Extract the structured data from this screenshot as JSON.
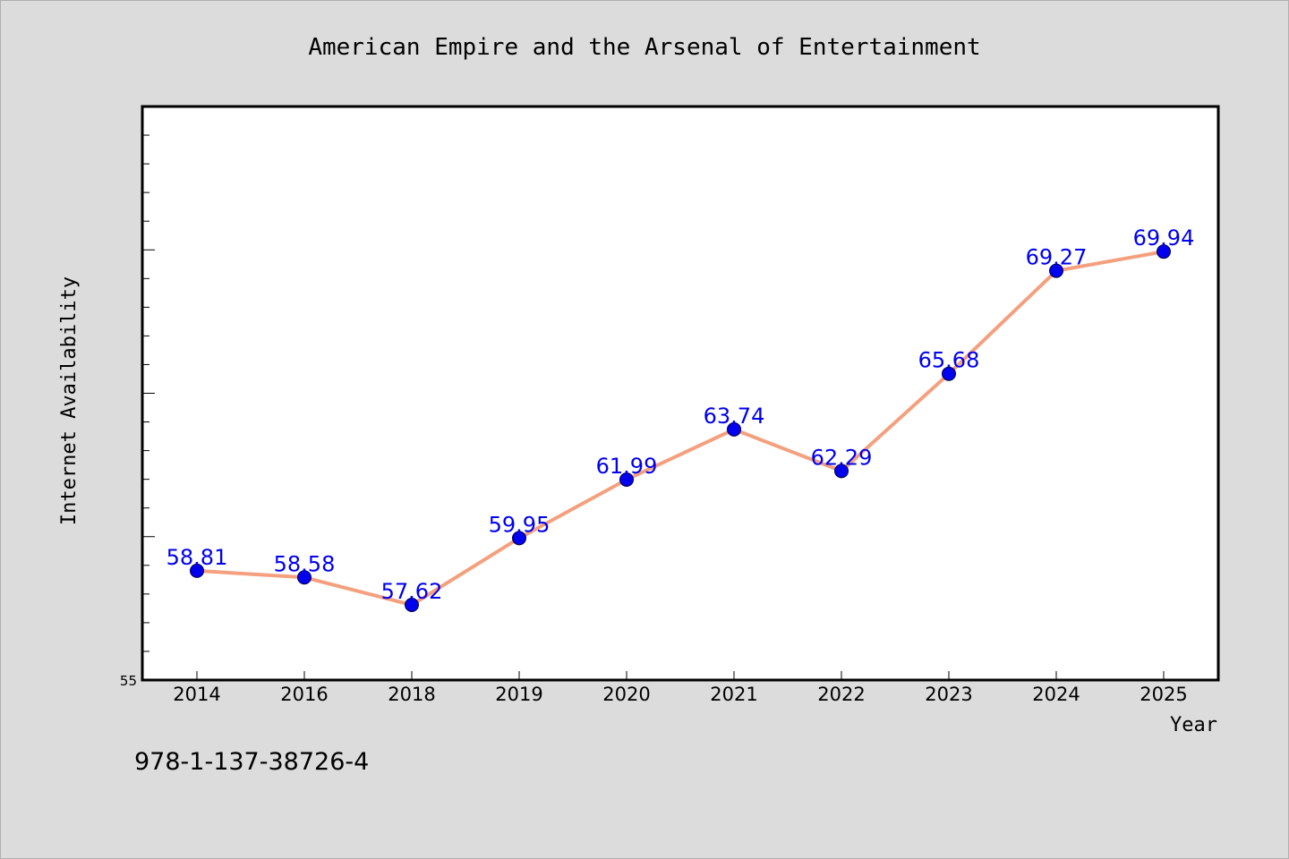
{
  "chart_data": {
    "type": "line",
    "title": "American Empire and the Arsenal of Entertainment",
    "xlabel": "Year",
    "ylabel": "Internet Availability",
    "categories": [
      "2014",
      "2016",
      "2018",
      "2019",
      "2020",
      "2021",
      "2022",
      "2023",
      "2024",
      "2025"
    ],
    "series": [
      {
        "values": [
          58.81,
          58.58,
          57.62,
          59.95,
          61.99,
          63.74,
          62.29,
          65.68,
          69.27,
          69.94
        ]
      }
    ],
    "data_labels": [
      "58.81",
      "58.58",
      "57.62",
      "59.95",
      "61.99",
      "63.74",
      "62.29",
      "65.68",
      "69.27",
      "69.94"
    ],
    "ylim": [
      55,
      75
    ],
    "y_tick_labels": [
      "55"
    ],
    "grid": false,
    "line_color": "#f4a07e",
    "marker_color": "#0000ee",
    "label_color": "#0000ee"
  },
  "footer": {
    "isbn": "978-1-137-38726-4"
  }
}
